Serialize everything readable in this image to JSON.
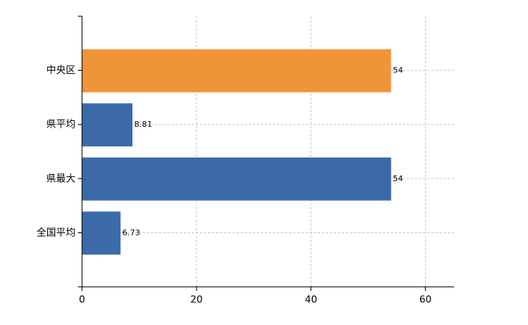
{
  "chart_data": {
    "type": "barh",
    "categories": [
      "中央区",
      "県平均",
      "県最大",
      "全国平均"
    ],
    "values": [
      54,
      8.81,
      54,
      6.73
    ],
    "colors": [
      "#f0943a",
      "#3a6aa8",
      "#3a6aa8",
      "#3a6aa8"
    ],
    "xlim": [
      0,
      65
    ],
    "xticks": [
      0,
      20,
      40,
      60
    ],
    "grid": true
  }
}
